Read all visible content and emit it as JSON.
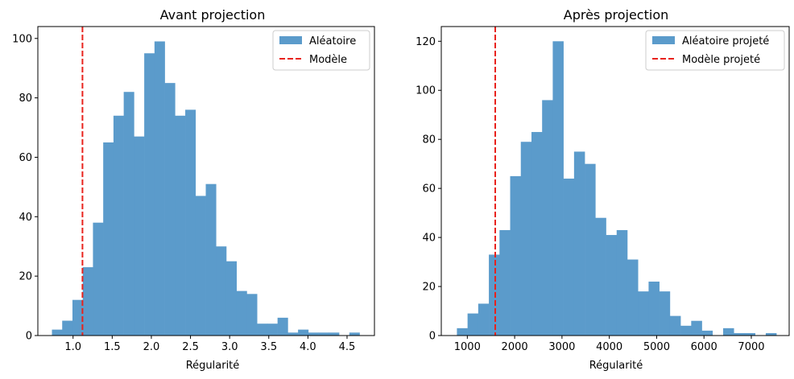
{
  "chart_data": [
    {
      "type": "bar",
      "title": "Avant projection",
      "xlabel": "Régularité",
      "ylabel": "",
      "xlim": [
        0.55,
        4.85
      ],
      "ylim": [
        0,
        104
      ],
      "xticks": [
        1.0,
        1.5,
        2.0,
        2.5,
        3.0,
        3.5,
        4.0,
        4.5
      ],
      "xtick_labels": [
        "1.0",
        "1.5",
        "2.0",
        "2.5",
        "3.0",
        "3.5",
        "4.0",
        "4.5"
      ],
      "yticks": [
        0,
        20,
        40,
        60,
        80,
        100
      ],
      "ytick_labels": [
        "0",
        "20",
        "40",
        "60",
        "80",
        "100"
      ],
      "grid": false,
      "legend_position": "top-right",
      "bin_start": 0.73,
      "bin_width": 0.131,
      "values": [
        2,
        5,
        12,
        23,
        38,
        65,
        74,
        82,
        67,
        95,
        99,
        85,
        74,
        76,
        47,
        51,
        30,
        25,
        15,
        14,
        4,
        4,
        6,
        1,
        2,
        1,
        1,
        1,
        0,
        1
      ],
      "series": [
        {
          "name": "Aléatoire",
          "kind": "histogram",
          "color": "#5b9bcb"
        },
        {
          "name": "Modèle",
          "kind": "vline",
          "x": 1.12,
          "color": "#e8221c",
          "style": "dashed"
        }
      ]
    },
    {
      "type": "bar",
      "title": "Après projection",
      "xlabel": "Régularité",
      "ylabel": "",
      "xlim": [
        450,
        7800
      ],
      "ylim": [
        0,
        126
      ],
      "xticks": [
        1000,
        2000,
        3000,
        4000,
        5000,
        6000,
        7000
      ],
      "xtick_labels": [
        "1000",
        "2000",
        "3000",
        "4000",
        "5000",
        "6000",
        "7000"
      ],
      "yticks": [
        0,
        20,
        40,
        60,
        80,
        100,
        120
      ],
      "ytick_labels": [
        "0",
        "20",
        "40",
        "60",
        "80",
        "100",
        "120"
      ],
      "grid": false,
      "legend_position": "top-right",
      "bin_start": 780,
      "bin_width": 225,
      "values": [
        3,
        9,
        13,
        33,
        43,
        65,
        79,
        83,
        96,
        120,
        64,
        75,
        70,
        48,
        41,
        43,
        31,
        18,
        22,
        18,
        8,
        4,
        6,
        2,
        0,
        3,
        1,
        1,
        0,
        1
      ],
      "series": [
        {
          "name": "Aléatoire projeté",
          "kind": "histogram",
          "color": "#5b9bcb"
        },
        {
          "name": "Modèle projeté",
          "kind": "vline",
          "x": 1590,
          "color": "#e8221c",
          "style": "dashed"
        }
      ]
    }
  ]
}
